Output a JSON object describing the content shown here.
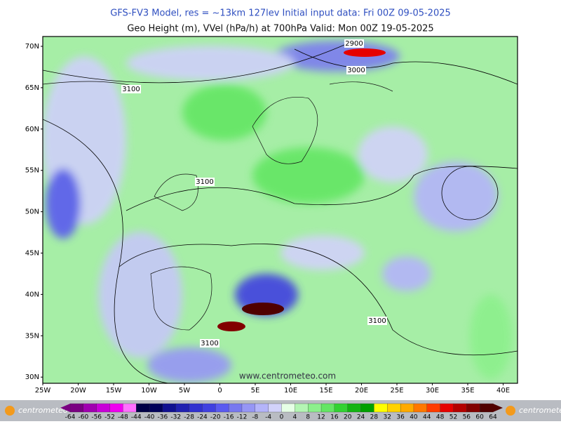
{
  "header": {
    "line1": "GFS-FV3 Model, res = ~13km 127lev   Initial input data: Fri 00Z 09-05-2025",
    "line2": "Geo Height (m), VVel (hPa/h) at 700hPa  Valid: Mon 00Z 19-05-2025"
  },
  "map": {
    "lat_labels": [
      "70N",
      "65N",
      "60N",
      "55N",
      "50N",
      "45N",
      "40N",
      "35N",
      "30N"
    ],
    "lon_labels": [
      "25W",
      "20W",
      "15W",
      "10W",
      "5W",
      "0",
      "5E",
      "10E",
      "15E",
      "20E",
      "25E",
      "30E",
      "35E",
      "40E"
    ],
    "contour_labels": [
      "2900",
      "3000",
      "3100",
      "3100",
      "3100",
      "3100"
    ],
    "watermark": "www.centrometeo.com"
  },
  "colorbar": {
    "labels": [
      -64,
      -60,
      -56,
      -52,
      -48,
      -44,
      -40,
      -36,
      -32,
      -28,
      -24,
      -20,
      -16,
      -12,
      -8,
      -4,
      0,
      4,
      8,
      12,
      16,
      20,
      24,
      28,
      32,
      36,
      40,
      44,
      48,
      52,
      56,
      60,
      64
    ],
    "colors": [
      "#7a0082",
      "#a000b0",
      "#c800d8",
      "#f000f0",
      "#ff70ff",
      "#000046",
      "#00005a",
      "#101090",
      "#2020b0",
      "#3030d0",
      "#4040e0",
      "#5a5af0",
      "#7878f0",
      "#9696f5",
      "#b4b4fa",
      "#d2d2fa",
      "#e6ffe6",
      "#b4f5b4",
      "#8cf08c",
      "#64e664",
      "#32d232",
      "#14b414",
      "#00a000",
      "#ffff00",
      "#ffd200",
      "#ffaa00",
      "#ff7800",
      "#ff3c00",
      "#e60000",
      "#b40000",
      "#820000",
      "#500000"
    ]
  },
  "footer": {
    "logo": "centrometeo"
  }
}
